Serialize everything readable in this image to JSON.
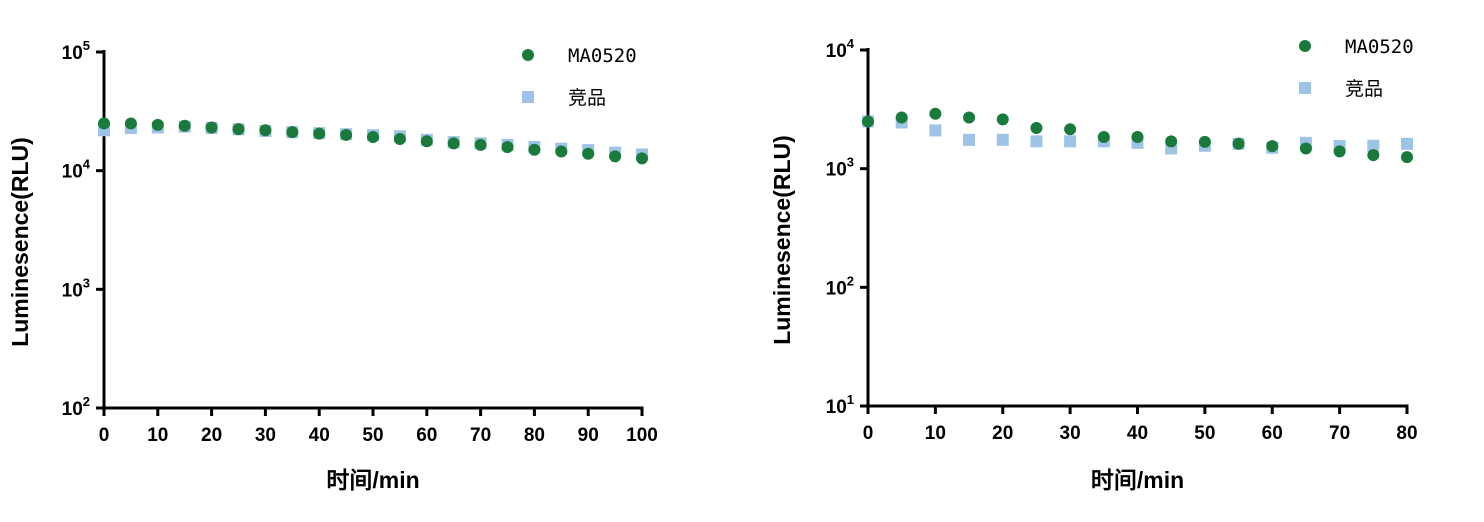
{
  "colors": {
    "series1": "#1a7a3c",
    "series2": "#9dc3e6"
  },
  "chart_data": [
    {
      "type": "scatter",
      "yscale": "log",
      "xlabel": "时间/min",
      "ylabel": "Luminesence(RLU)",
      "xlim": [
        0,
        100
      ],
      "ylim": [
        100,
        100000
      ],
      "xticks": [
        0,
        10,
        20,
        30,
        40,
        50,
        60,
        70,
        80,
        90,
        100
      ],
      "xtick_labels": [
        "0",
        "10",
        "20",
        "30",
        "40",
        "50",
        "60",
        "70",
        "80",
        "90",
        "100"
      ],
      "ytick_labels": [
        {
          "value": 100,
          "base": "10",
          "exp": "2"
        },
        {
          "value": 1000,
          "base": "10",
          "exp": "3"
        },
        {
          "value": 10000,
          "base": "10",
          "exp": "4"
        },
        {
          "value": 100000,
          "base": "10",
          "exp": "5"
        }
      ],
      "legend": "top-right",
      "x": [
        0,
        5,
        10,
        15,
        20,
        25,
        30,
        35,
        40,
        45,
        50,
        55,
        60,
        65,
        70,
        75,
        80,
        85,
        90,
        95,
        100
      ],
      "series": [
        {
          "name": "MA0520",
          "marker": "circle",
          "values": [
            25000,
            25000,
            24300,
            23900,
            23100,
            22400,
            21900,
            21100,
            20500,
            20000,
            19200,
            18500,
            17700,
            17000,
            16500,
            15800,
            15000,
            14500,
            13900,
            13200,
            12700
          ]
        },
        {
          "name": "竞品",
          "marker": "square",
          "values": [
            21900,
            22900,
            23100,
            23500,
            22900,
            22300,
            21600,
            21100,
            20700,
            20300,
            19900,
            19500,
            18200,
            17400,
            17000,
            16500,
            15800,
            15300,
            14900,
            14200,
            13700
          ]
        }
      ]
    },
    {
      "type": "scatter",
      "yscale": "log",
      "xlabel": "时间/min",
      "ylabel": "Luminesence(RLU)",
      "xlim": [
        0,
        80
      ],
      "ylim": [
        10,
        10000
      ],
      "xticks": [
        0,
        10,
        20,
        30,
        40,
        50,
        60,
        70,
        80
      ],
      "xtick_labels": [
        "0",
        "10",
        "20",
        "30",
        "40",
        "50",
        "60",
        "70",
        "80"
      ],
      "ytick_labels": [
        {
          "value": 10,
          "base": "10",
          "exp": "1"
        },
        {
          "value": 100,
          "base": "10",
          "exp": "2"
        },
        {
          "value": 1000,
          "base": "10",
          "exp": "3"
        },
        {
          "value": 10000,
          "base": "10",
          "exp": "4"
        }
      ],
      "legend": "top-right",
      "x": [
        0,
        5,
        10,
        15,
        20,
        25,
        30,
        35,
        40,
        45,
        50,
        55,
        60,
        65,
        70,
        75,
        80
      ],
      "series": [
        {
          "name": "MA0520",
          "marker": "circle",
          "values": [
            2500,
            2700,
            2900,
            2700,
            2600,
            2200,
            2150,
            1850,
            1850,
            1700,
            1680,
            1620,
            1550,
            1480,
            1400,
            1300,
            1250
          ]
        },
        {
          "name": "竞品",
          "marker": "square",
          "values": [
            2500,
            2450,
            2100,
            1750,
            1750,
            1700,
            1700,
            1700,
            1650,
            1480,
            1560,
            1620,
            1500,
            1650,
            1550,
            1560,
            1620
          ]
        }
      ]
    }
  ]
}
